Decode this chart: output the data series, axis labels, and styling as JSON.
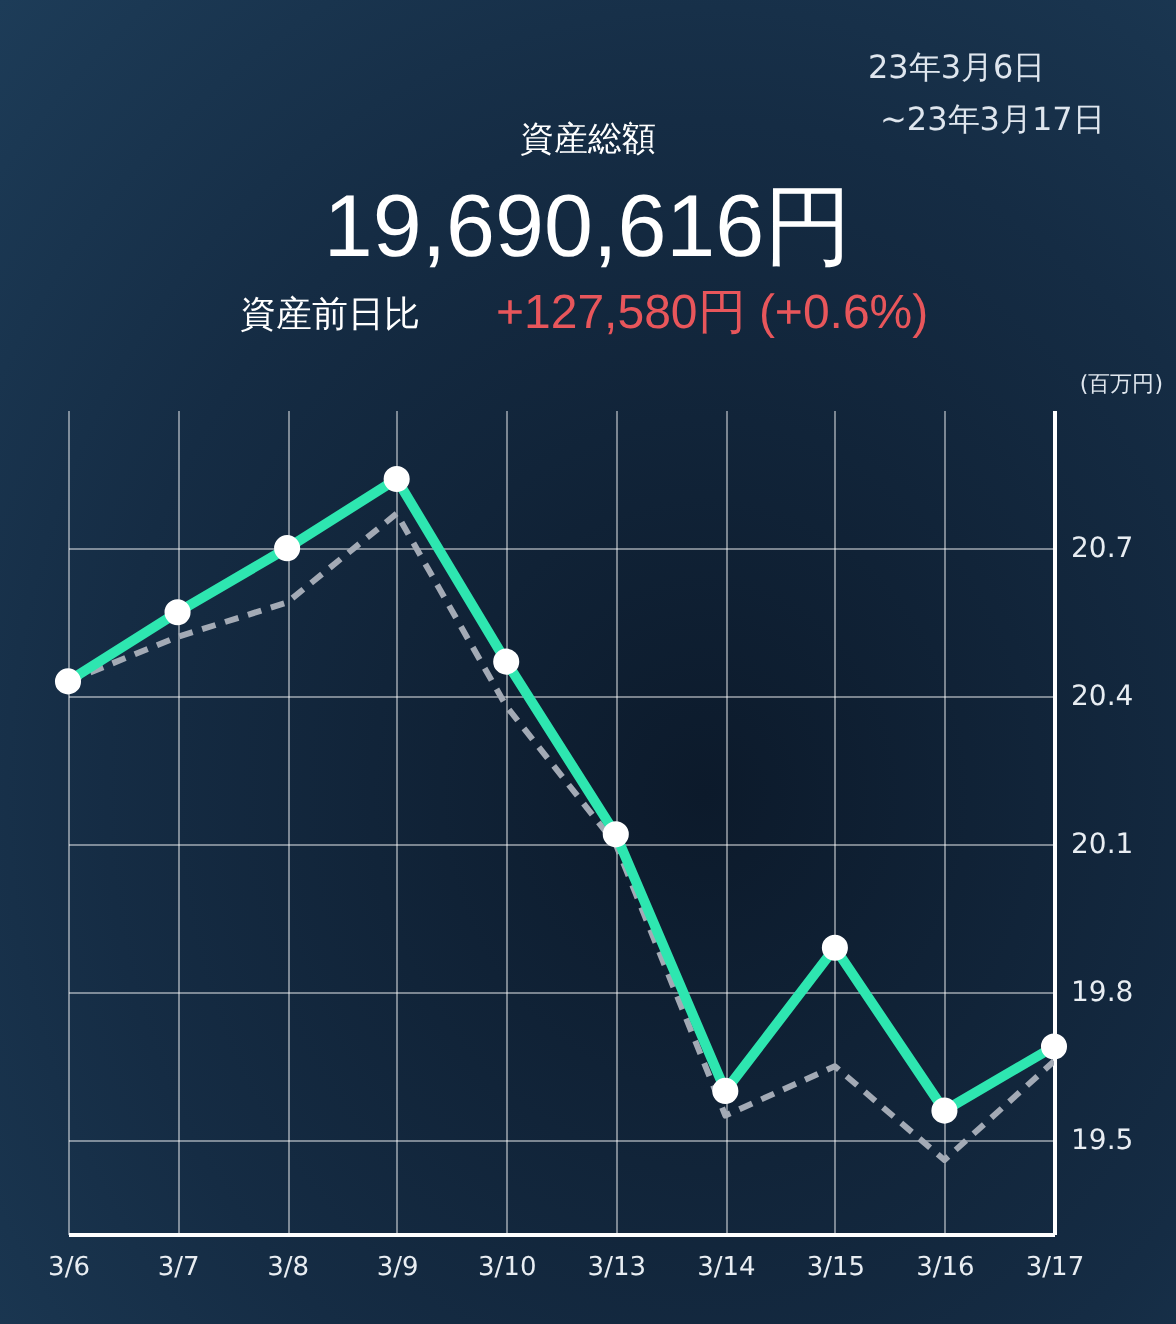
{
  "chart_data": {
    "type": "line",
    "title": "資産総額",
    "ylabel": "(百万円)",
    "annotations": [
      "19,690,616円",
      "資産前日比",
      "+127,580円 (+0.6%)",
      "23年3月6日",
      "~23年3月17日"
    ],
    "categories": [
      "3/6",
      "3/7",
      "3/8",
      "3/9",
      "3/10",
      "3/13",
      "3/14",
      "3/15",
      "3/16",
      "3/17"
    ],
    "series": [
      {
        "color": "#a3aab5",
        "line_style": "dashed",
        "marker": "none",
        "values": [
          20.43,
          20.52,
          20.59,
          20.77,
          20.38,
          20.1,
          19.55,
          19.65,
          19.46,
          19.66
        ]
      },
      {
        "color": "#2ee6b0",
        "line_style": "solid",
        "marker": "circle",
        "values": [
          20.43,
          20.57,
          20.7,
          20.84,
          20.47,
          20.12,
          19.6,
          19.89,
          19.56,
          19.69
        ]
      }
    ],
    "ylim": [
      19.31,
      20.98
    ],
    "yticks": [
      19.5,
      19.8,
      20.1,
      20.4,
      20.7
    ],
    "grid": true
  }
}
